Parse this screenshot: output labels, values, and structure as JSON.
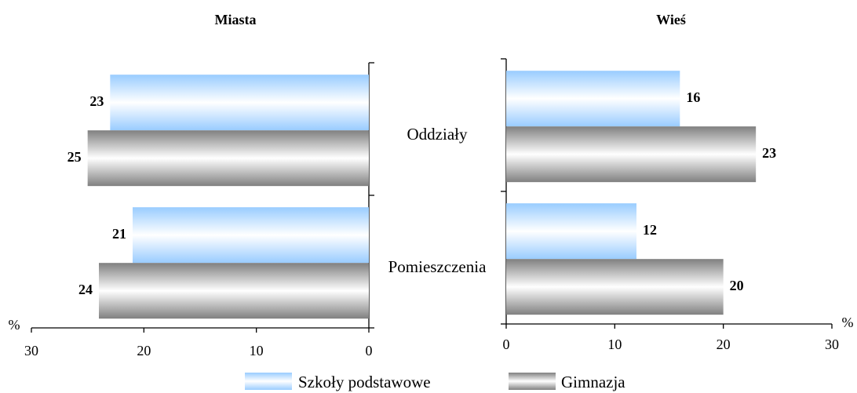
{
  "chart_data": [
    {
      "type": "bar",
      "orientation": "horizontal",
      "title": "Miasta",
      "categories": [
        "Oddziały",
        "Pomieszczenia"
      ],
      "series": [
        {
          "name": "Szkoły podstawowe",
          "color": "#99ccff",
          "values": [
            23,
            21
          ]
        },
        {
          "name": "Gimnazja",
          "color": "#808080",
          "values": [
            25,
            24
          ]
        }
      ],
      "xlim": [
        30,
        0
      ],
      "xticks": [
        30,
        20,
        10,
        0
      ],
      "x_label": "%"
    },
    {
      "type": "bar",
      "orientation": "horizontal",
      "title": "Wieś",
      "series": [
        {
          "color": "#99ccff",
          "values": [
            16,
            12
          ]
        },
        {
          "color": "#808080",
          "values": [
            23,
            20
          ]
        }
      ],
      "xlim": [
        0,
        30
      ],
      "xticks": [
        0,
        10,
        20,
        30
      ],
      "x_label": "%"
    }
  ]
}
